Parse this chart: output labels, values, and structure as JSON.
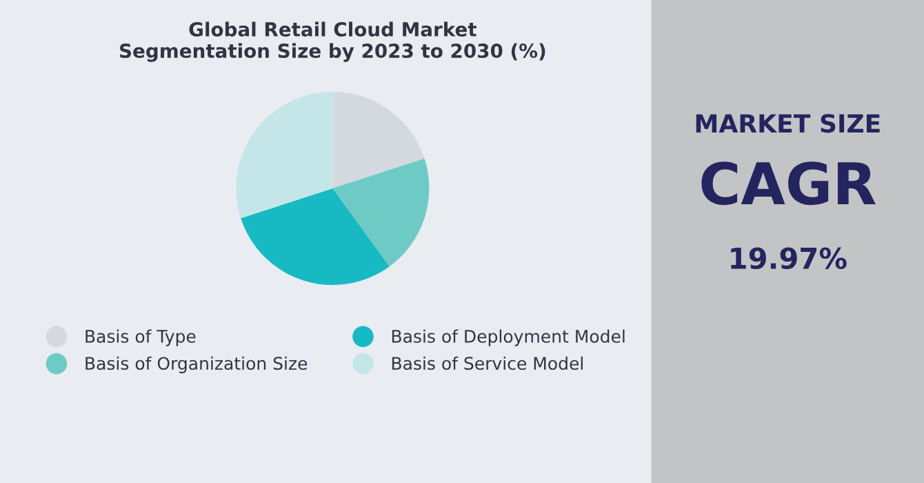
{
  "chart_data": [
    {
      "type": "pie",
      "title": "Global Retail Cloud Market\nSegmentation Size by 2023 to 2030 (%)",
      "categories": [
        "Basis of Type",
        "Basis of Organization Size",
        "Basis of Deployment Model",
        "Basis of Service Model"
      ],
      "values": [
        20,
        20,
        30,
        30
      ],
      "colors": [
        "#d3d9de",
        "#6dcac4",
        "#17bac2",
        "#c5e6e9"
      ],
      "legend": "bottom"
    },
    {
      "type": "other",
      "annotations": [
        "MARKET SIZE",
        "CAGR",
        "19.97%"
      ]
    }
  ]
}
